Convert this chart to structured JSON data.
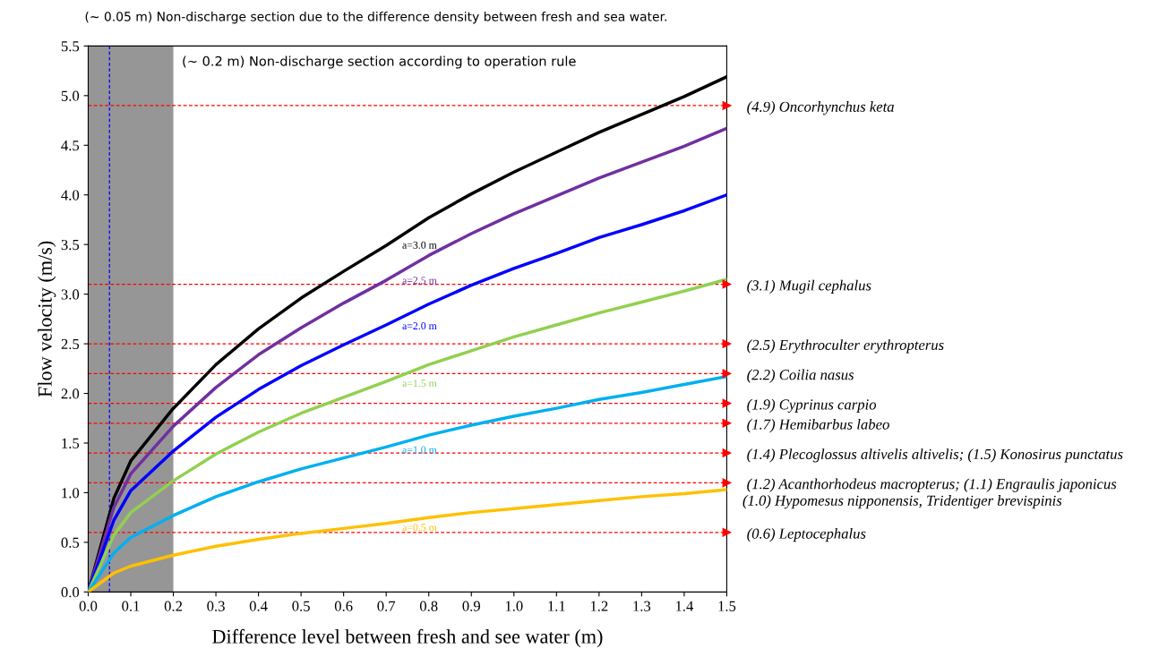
{
  "chart_data": {
    "type": "line",
    "xlabel": "Difference level between fresh and see water (m)",
    "ylabel": "Flow velocity (m/s)",
    "x": [
      0,
      0.06,
      0.1,
      0.2,
      0.3,
      0.4,
      0.5,
      0.6,
      0.7,
      0.8,
      0.9,
      1.0,
      1.1,
      1.2,
      1.3,
      1.4,
      1.5
    ],
    "series": [
      {
        "name": "a=3.0 m",
        "color": "#000000",
        "values": [
          0,
          0.94,
          1.32,
          1.85,
          2.29,
          2.65,
          2.96,
          3.23,
          3.49,
          3.77,
          4.01,
          4.23,
          4.43,
          4.63,
          4.81,
          4.99,
          5.19
        ]
      },
      {
        "name": "a=2.5 m",
        "color": "#7030a0",
        "values": [
          0,
          0.85,
          1.19,
          1.67,
          2.06,
          2.39,
          2.66,
          2.91,
          3.14,
          3.39,
          3.61,
          3.81,
          3.99,
          4.17,
          4.33,
          4.49,
          4.67
        ]
      },
      {
        "name": "a=2.0 m",
        "color": "#0000ff",
        "values": [
          0,
          0.72,
          1.02,
          1.42,
          1.76,
          2.04,
          2.28,
          2.49,
          2.69,
          2.9,
          3.09,
          3.26,
          3.41,
          3.57,
          3.7,
          3.84,
          4.0
        ]
      },
      {
        "name": "a=1.5 m",
        "color": "#92d050",
        "values": [
          0,
          0.57,
          0.8,
          1.12,
          1.39,
          1.61,
          1.8,
          1.96,
          2.12,
          2.29,
          2.43,
          2.57,
          2.69,
          2.81,
          2.92,
          3.03,
          3.15
        ]
      },
      {
        "name": "a=1.0 m",
        "color": "#00b0f0",
        "values": [
          0,
          0.39,
          0.55,
          0.77,
          0.96,
          1.11,
          1.24,
          1.35,
          1.46,
          1.58,
          1.68,
          1.77,
          1.85,
          1.94,
          2.01,
          2.09,
          2.17
        ]
      },
      {
        "name": "a=0.5 m",
        "color": "#ffc000",
        "values": [
          0,
          0.19,
          0.26,
          0.37,
          0.46,
          0.53,
          0.59,
          0.64,
          0.69,
          0.75,
          0.8,
          0.84,
          0.88,
          0.92,
          0.96,
          0.99,
          1.03
        ]
      }
    ],
    "xlim": [
      0,
      1.5
    ],
    "xticks": [
      {
        "value": 0,
        "label": "0.0"
      },
      0.1,
      0.2,
      0.3,
      0.4,
      0.5,
      0.6,
      0.7,
      0.8,
      0.9,
      {
        "value": 1,
        "label": "1.0"
      },
      1.1,
      1.2,
      1.3,
      1.4,
      1.5
    ],
    "ylim": [
      0,
      5.5
    ],
    "yticks": [
      {
        "value": 0,
        "label": "0.0"
      },
      0.5,
      {
        "value": 1,
        "label": "1.0"
      },
      1.5,
      {
        "value": 2,
        "label": "2.0"
      },
      2.5,
      {
        "value": 3,
        "label": "3.0"
      },
      3.5,
      {
        "value": 4,
        "label": "4.0"
      },
      4.5,
      {
        "value": 5,
        "label": "5.0"
      },
      5.5
    ],
    "ref_lines": [
      {
        "axis": "y",
        "value": 4.9,
        "label": "(4.9) Oncorhynchus keta",
        "color": "#ff0000",
        "line_style": "dashed"
      },
      {
        "axis": "y",
        "value": 3.1,
        "label": "(3.1) Mugil cephalus",
        "color": "#ff0000",
        "line_style": "dashed"
      },
      {
        "axis": "y",
        "value": 2.5,
        "label": "(2.5) Erythroculter erythropterus",
        "color": "#ff0000",
        "line_style": "dashed"
      },
      {
        "axis": "y",
        "value": 2.2,
        "label": "(2.2) Coilia nasus",
        "color": "#ff0000",
        "line_style": "dashed"
      },
      {
        "axis": "y",
        "value": 1.9,
        "label": "(1.9) Cyprinus carpio",
        "color": "#ff0000",
        "line_style": "dashed"
      },
      {
        "axis": "y",
        "value": 1.7,
        "label": "(1.7) Hemibarbus labeo",
        "color": "#ff0000",
        "line_style": "dashed"
      },
      {
        "axis": "y",
        "value": 1.4,
        "label": "(1.4) Plecoglossus altivelis altivelis; (1.5) Konosirus punctatus",
        "color": "#ff0000",
        "line_style": "dashed"
      },
      {
        "axis": "y",
        "value": 1.1,
        "label": "(1.2) Acanthorhodeus macropterus; (1.1) Engraulis japonicus",
        "color": "#ff0000",
        "line_style": "dashed"
      },
      {
        "axis": "y",
        "value": 0.6,
        "label": "(0.6) Leptocephalus",
        "color": "#ff0000",
        "line_style": "dashed"
      },
      {
        "axis": "x",
        "value": 0.05,
        "label": "(~ 0.05 m) Non-discharge section due to the difference density between fresh and sea water.",
        "color": "#0000ff",
        "line_style": "dashed"
      }
    ],
    "bands": [
      {
        "axis": "x",
        "from": 0,
        "to": 0.2,
        "label": "(~ 0.2 m) Non-discharge section according to operation rule",
        "color": "#969696"
      }
    ],
    "annotations": [
      "(1.0) Hypomesus nipponensis, Tridentiger brevispinis"
    ]
  }
}
